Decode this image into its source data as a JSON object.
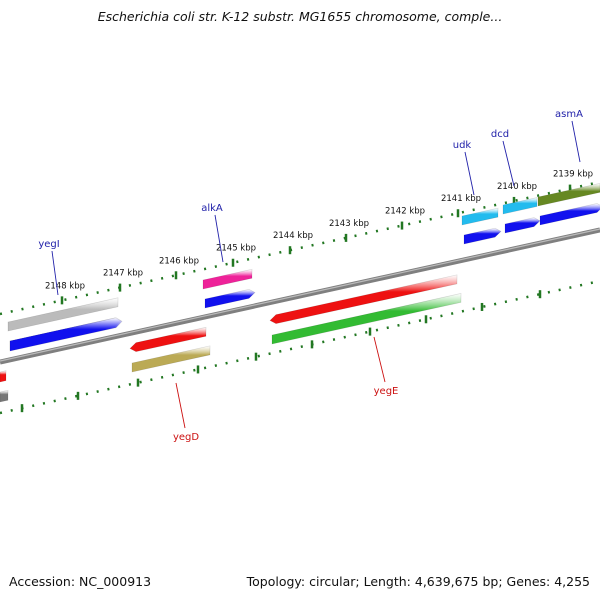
{
  "title": "Escherichia coli str. K-12 substr. MG1655 chromosome, comple...",
  "accession_label": "Accession: NC_000913",
  "summary_label": "Topology: circular; Length: 4,639,675 bp; Genes: 4,255",
  "colors": {
    "backbone": "#7f7f7f",
    "tick": "#227722",
    "plus_label": "#2222aa",
    "minus_label": "#cc1111"
  },
  "kbp_ticks": [
    "2148 kbp",
    "2147 kbp",
    "2146 kbp",
    "2145 kbp",
    "2144 kbp",
    "2143 kbp",
    "2142 kbp",
    "2141 kbp",
    "2140 kbp",
    "2139 kbp"
  ],
  "genes_plus": [
    {
      "name": "yegI",
      "color": "#bbbbbb"
    },
    {
      "name": "alkA",
      "color": "#ee2299"
    },
    {
      "name": "udk",
      "color": "#22bbee"
    },
    {
      "name": "dcd",
      "color": "#22bbee"
    },
    {
      "name": "asmA",
      "color": "#668822"
    }
  ],
  "genes_minus": [
    {
      "name": "yegD",
      "color": "#ee1111"
    },
    {
      "name": "yegE",
      "color": "#ee1111"
    }
  ],
  "minus_second_colors": {
    "yegD": "#bbaa55",
    "yegE": "#33bb33"
  }
}
